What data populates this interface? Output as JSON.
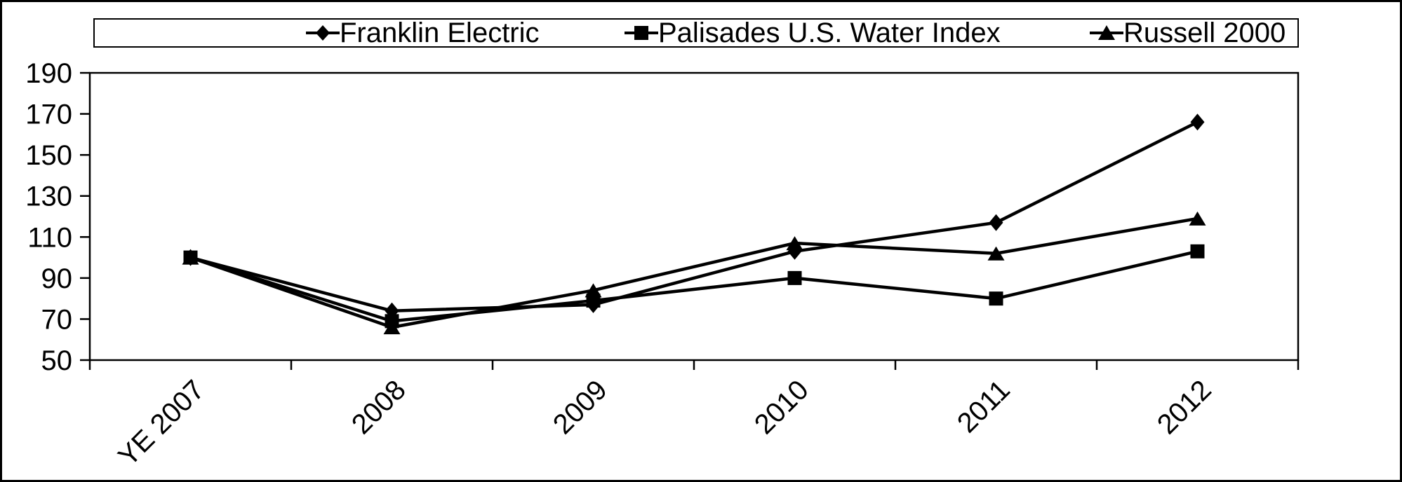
{
  "legend": {
    "items": [
      {
        "label": "Franklin Electric",
        "marker": "diamond"
      },
      {
        "label": "Palisades U.S. Water Index",
        "marker": "square"
      },
      {
        "label": "Russell 2000",
        "marker": "triangle"
      }
    ]
  },
  "chart_data": {
    "type": "line",
    "categories": [
      "YE 2007",
      "2008",
      "2009",
      "2010",
      "2011",
      "2012"
    ],
    "series": [
      {
        "name": "Franklin Electric",
        "marker": "diamond",
        "values": [
          100,
          74,
          77,
          103,
          117,
          166
        ]
      },
      {
        "name": "Palisades U.S. Water Index",
        "marker": "square",
        "values": [
          100,
          69,
          79,
          90,
          80,
          103
        ]
      },
      {
        "name": "Russell 2000",
        "marker": "triangle",
        "values": [
          100,
          66,
          84,
          107,
          102,
          119
        ]
      }
    ],
    "title": "",
    "xlabel": "",
    "ylabel": "",
    "ylim": [
      50,
      190
    ],
    "y_ticks": [
      190,
      170,
      150,
      130,
      110,
      90,
      70,
      50
    ],
    "grid": false,
    "legend_position": "top",
    "line_color": "#000000",
    "background_color": "#ffffff"
  }
}
